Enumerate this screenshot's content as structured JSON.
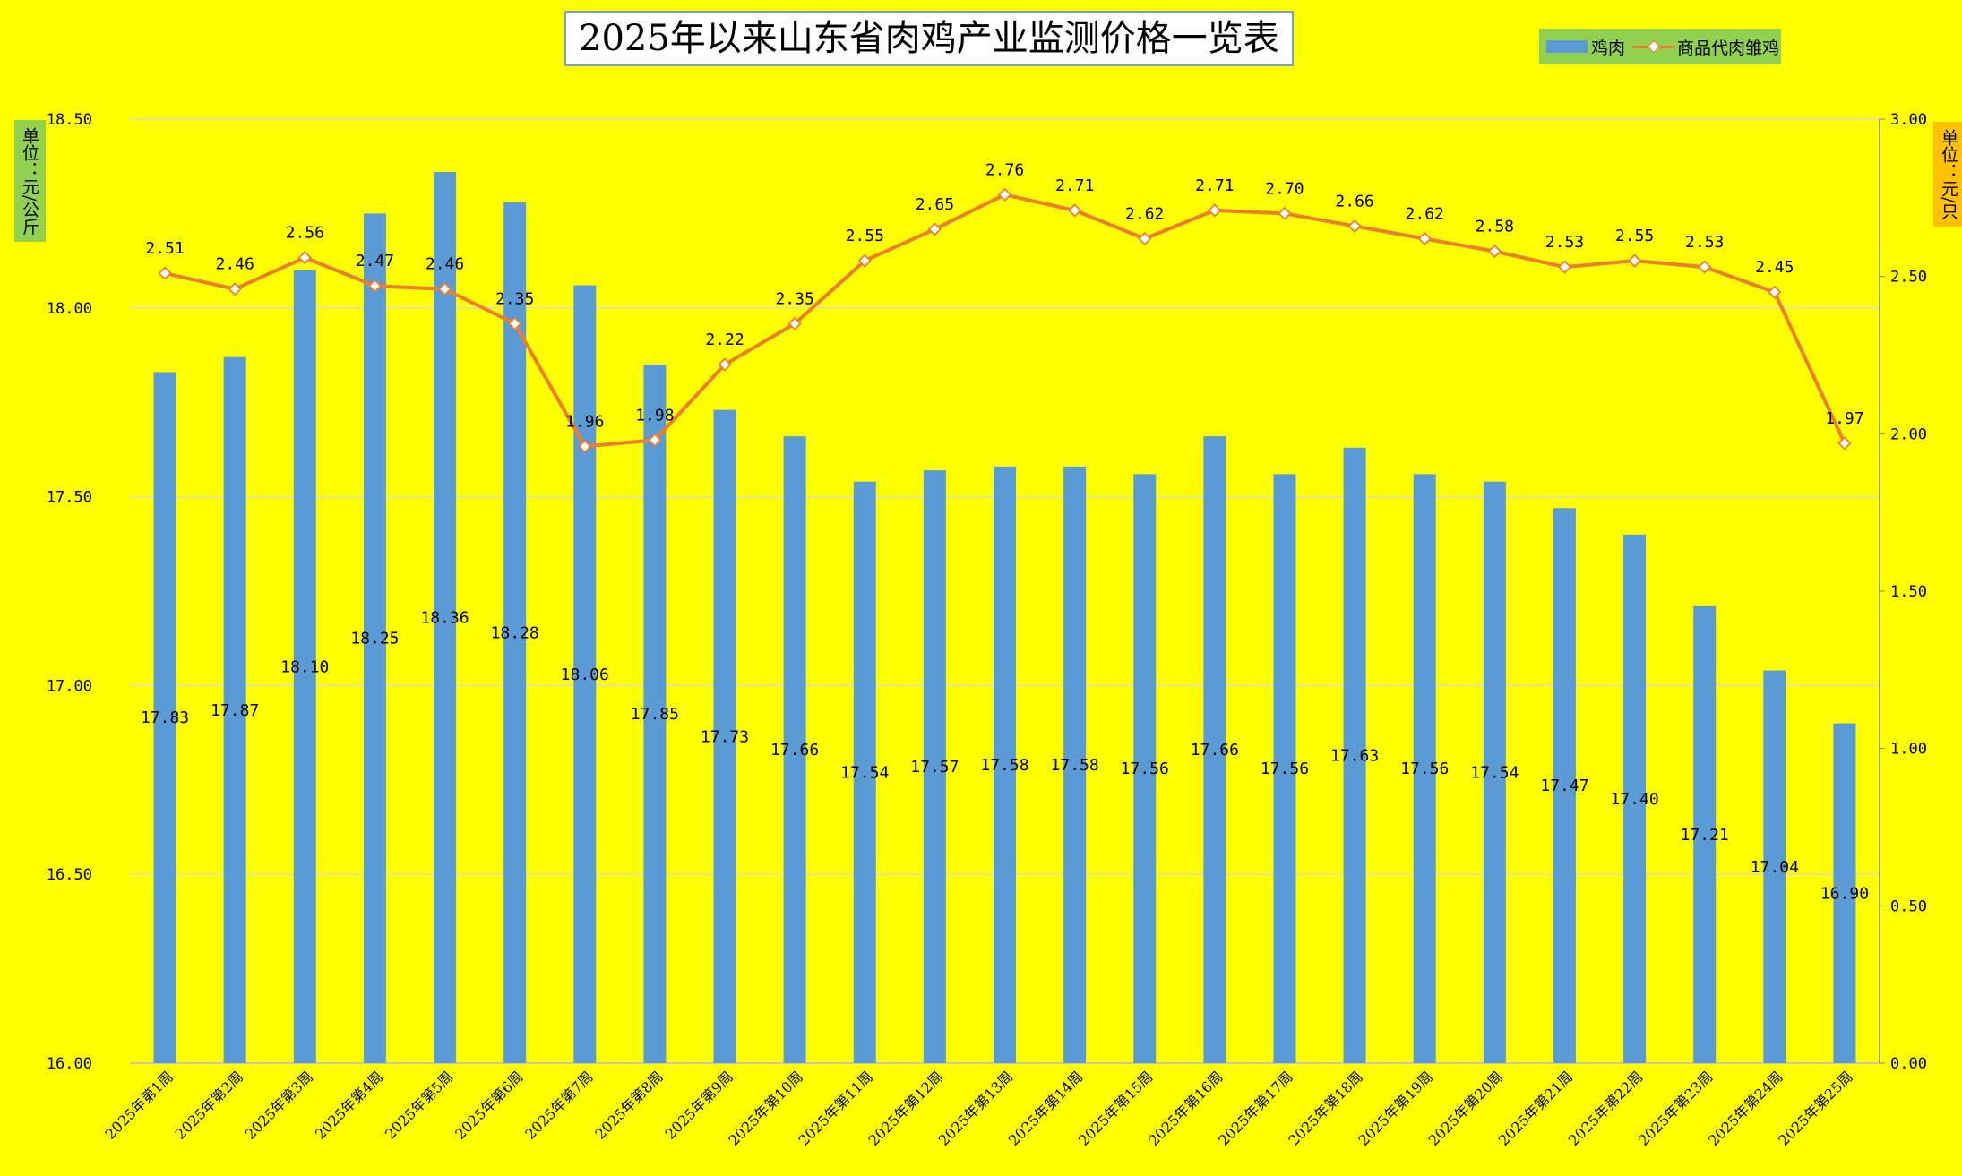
{
  "chart_data": {
    "type": "bar+line",
    "title": "2025年以来山东省肉鸡产业监测价格一览表",
    "categories": [
      "2025年第1周",
      "2025年第2周",
      "2025年第3周",
      "2025年第4周",
      "2025年第5周",
      "2025年第6周",
      "2025年第7周",
      "2025年第8周",
      "2025年第9周",
      "2025年第10周",
      "2025年第11周",
      "2025年第12周",
      "2025年第13周",
      "2025年第14周",
      "2025年第15周",
      "2025年第16周",
      "2025年第17周",
      "2025年第18周",
      "2025年第19周",
      "2025年第20周",
      "2025年第21周",
      "2025年第22周",
      "2025年第23周",
      "2025年第24周",
      "2025年第25周"
    ],
    "series": [
      {
        "name": "鸡肉",
        "type": "bar",
        "axis": "left",
        "color": "#5b9bd5",
        "values": [
          17.83,
          17.87,
          18.1,
          18.25,
          18.36,
          18.28,
          18.06,
          17.85,
          17.73,
          17.66,
          17.54,
          17.57,
          17.58,
          17.58,
          17.56,
          17.66,
          17.56,
          17.63,
          17.56,
          17.54,
          17.47,
          17.4,
          17.21,
          17.04,
          16.9
        ],
        "labels": [
          "17.83",
          "17.87",
          "18.10",
          "18.25",
          "18.36",
          "18.28",
          "18.06",
          "17.85",
          "17.73",
          "17.66",
          "17.54",
          "17.57",
          "17.58",
          "17.58",
          "17.56",
          "17.66",
          "17.56",
          "17.63",
          "17.56",
          "17.54",
          "17.47",
          "17.40",
          "17.21",
          "17.04",
          "16.90"
        ]
      },
      {
        "name": "商品代肉雏鸡",
        "type": "line",
        "axis": "right",
        "color": "#ed7d31",
        "values": [
          2.51,
          2.46,
          2.56,
          2.47,
          2.46,
          2.35,
          1.96,
          1.98,
          2.22,
          2.35,
          2.55,
          2.65,
          2.76,
          2.71,
          2.62,
          2.71,
          2.7,
          2.66,
          2.62,
          2.58,
          2.53,
          2.55,
          2.53,
          2.45,
          1.97
        ],
        "labels": [
          "2.51",
          "2.46",
          "2.56",
          "2.47",
          "2.46",
          "2.35",
          "1.96",
          "1.98",
          "2.22",
          "2.35",
          "2.55",
          "2.65",
          "2.76",
          "2.71",
          "2.62",
          "2.71",
          "2.70",
          "2.66",
          "2.62",
          "2.58",
          "2.53",
          "2.55",
          "2.53",
          "2.45",
          "1.97"
        ]
      }
    ],
    "y_left": {
      "label": "单位：元/公斤",
      "lim": [
        16.0,
        18.5
      ],
      "ticks": [
        "16.00",
        "16.50",
        "17.00",
        "17.50",
        "18.00",
        "18.50"
      ]
    },
    "y_right": {
      "label": "单位：元/只",
      "lim": [
        0,
        3.0
      ],
      "ticks": [
        "0.00",
        "0.50",
        "1.00",
        "1.50",
        "2.00",
        "2.50",
        "3.00"
      ]
    },
    "grid": true,
    "legend_position": "top-right",
    "legend": [
      "鸡肉",
      "商品代肉雏鸡"
    ]
  }
}
